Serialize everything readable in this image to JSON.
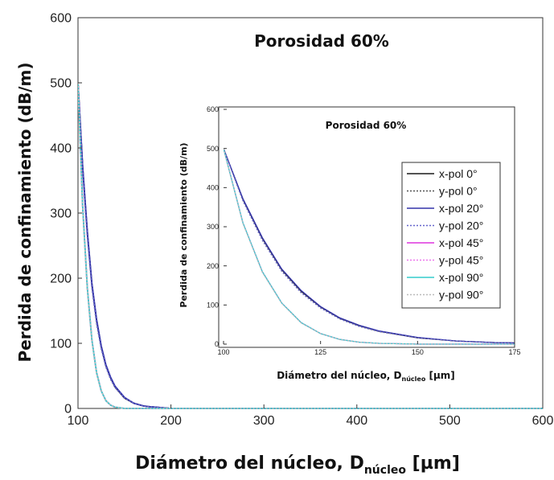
{
  "chart_data": [
    {
      "id": "main",
      "type": "line",
      "title": "Porosidad 60%",
      "xlabel_main": "Diámetro del núcleo, D",
      "xlabel_sub": "núcleo",
      "xlabel_unit": " [µm]",
      "ylabel": "Perdida de confinamiento (dB/m)",
      "xlim": [
        100,
        600
      ],
      "ylim": [
        0,
        600
      ],
      "xticks": [
        "100",
        "200",
        "300",
        "400",
        "500",
        "600"
      ],
      "yticks": [
        "0",
        "100",
        "200",
        "300",
        "400",
        "500",
        "600"
      ],
      "grid": false,
      "series": [
        {
          "name": "x-pol 0°",
          "color": "#1a1a1a",
          "dash": "solid",
          "x": [
            100,
            105,
            110,
            115,
            120,
            125,
            130,
            135,
            140,
            150,
            160,
            170,
            175,
            200,
            300,
            400,
            500,
            600
          ],
          "y": [
            500,
            370,
            270,
            190,
            135,
            95,
            66,
            47,
            33,
            16,
            8,
            4,
            3,
            0,
            0,
            0,
            0,
            0
          ]
        },
        {
          "name": "y-pol 0°",
          "color": "#555555",
          "dash": "dot",
          "x": [
            100,
            105,
            110,
            115,
            120,
            125,
            130,
            135,
            140,
            150,
            160,
            170,
            175,
            200,
            300,
            400,
            500,
            600
          ],
          "y": [
            500,
            368,
            268,
            188,
            133,
            94,
            65,
            46,
            32,
            16,
            8,
            4,
            3,
            0,
            0,
            0,
            0,
            0
          ]
        },
        {
          "name": "x-pol 20°",
          "color": "#3333aa",
          "dash": "solid",
          "x": [
            100,
            105,
            110,
            115,
            120,
            125,
            130,
            135,
            140,
            150,
            160,
            170,
            175,
            200,
            300,
            400,
            500,
            600
          ],
          "y": [
            500,
            372,
            272,
            192,
            137,
            96,
            67,
            48,
            34,
            17,
            8,
            4,
            3,
            0,
            0,
            0,
            0,
            0
          ]
        },
        {
          "name": "y-pol 20°",
          "color": "#6666cc",
          "dash": "dot",
          "x": [
            100,
            105,
            110,
            115,
            120,
            125,
            130,
            135,
            140,
            150,
            160,
            170,
            175,
            200,
            300,
            400,
            500,
            600
          ],
          "y": [
            500,
            366,
            265,
            186,
            131,
            92,
            64,
            45,
            32,
            16,
            8,
            4,
            3,
            0,
            0,
            0,
            0,
            0
          ]
        },
        {
          "name": "x-pol 45°",
          "color": "#dd33dd",
          "dash": "solid",
          "x": [
            100,
            105,
            110,
            115,
            120,
            125,
            130,
            135,
            140,
            150,
            160,
            170,
            175,
            200,
            300,
            400,
            500,
            600
          ],
          "y": [
            500,
            310,
            185,
            105,
            55,
            27,
            12,
            5,
            2,
            0,
            0,
            0,
            0,
            0,
            0,
            0,
            0,
            0
          ]
        },
        {
          "name": "y-pol 45°",
          "color": "#ee77ee",
          "dash": "dot",
          "x": [
            100,
            105,
            110,
            115,
            120,
            125,
            130,
            135,
            140,
            150,
            160,
            170,
            175,
            200,
            300,
            400,
            500,
            600
          ],
          "y": [
            500,
            310,
            185,
            105,
            55,
            27,
            12,
            5,
            2,
            0,
            0,
            0,
            0,
            0,
            0,
            0,
            0,
            0
          ]
        },
        {
          "name": "x-pol 90°",
          "color": "#33cccc",
          "dash": "solid",
          "x": [
            100,
            105,
            110,
            115,
            120,
            125,
            130,
            135,
            140,
            150,
            160,
            170,
            175,
            200,
            300,
            400,
            500,
            600
          ],
          "y": [
            500,
            310,
            185,
            105,
            55,
            27,
            12,
            5,
            2,
            0,
            0,
            0,
            0,
            0,
            0,
            0,
            0,
            0
          ]
        },
        {
          "name": "y-pol 90°",
          "color": "#bbbbbb",
          "dash": "dot",
          "x": [
            100,
            105,
            110,
            115,
            120,
            125,
            130,
            135,
            140,
            150,
            160,
            170,
            175,
            200,
            300,
            400,
            500,
            600
          ],
          "y": [
            500,
            308,
            183,
            104,
            54,
            27,
            12,
            5,
            2,
            0,
            0,
            0,
            0,
            0,
            0,
            0,
            0,
            0
          ]
        }
      ]
    },
    {
      "id": "inset",
      "type": "line",
      "title": "Porosidad 60%",
      "xlabel_main": "Diámetro del núcleo, D",
      "xlabel_sub": "núcleo",
      "xlabel_unit": " [µm]",
      "ylabel": "Perdida de confinamiento (dB/m)",
      "xlim": [
        100,
        175
      ],
      "ylim": [
        0,
        600
      ],
      "xticks": [
        "100",
        "125",
        "150",
        "175"
      ],
      "yticks": [
        "0",
        "100",
        "200",
        "300",
        "400",
        "500",
        "600"
      ],
      "legend": "right",
      "series_ref": "main"
    }
  ]
}
